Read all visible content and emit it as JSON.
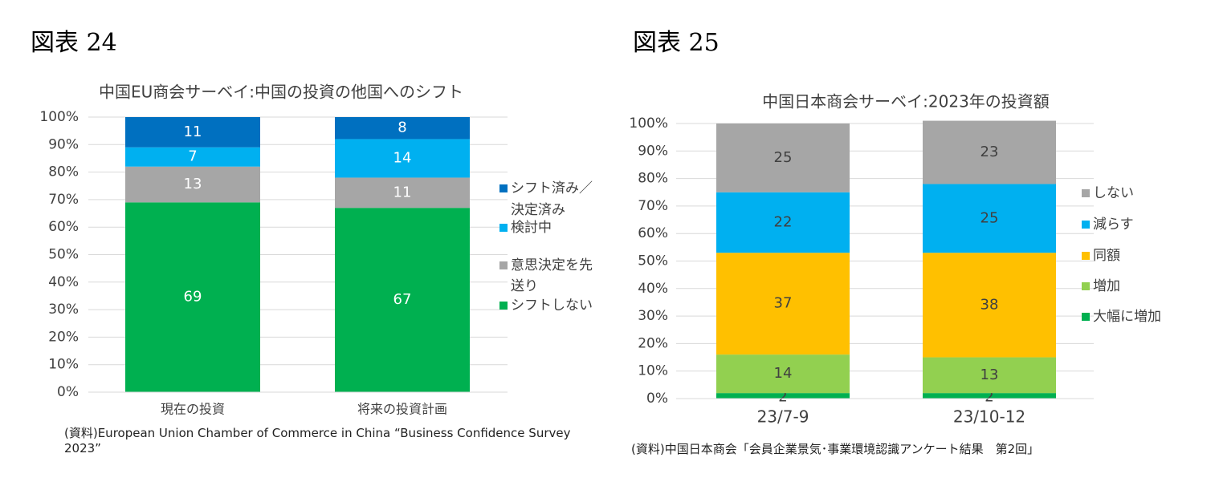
{
  "figures": [
    {
      "label": "図表 24",
      "source": "(資料)European Union Chamber of Commerce in China “Business Confidence Survey 2023”"
    },
    {
      "label": "図表 25",
      "source": "(資料)中国日本商会「会員企業景気･事業環境認識アンケート結果　第2回」"
    }
  ],
  "chart_data": [
    {
      "type": "bar",
      "stacked": true,
      "title": "中国EU商会サーベイ:中国の投資の他国へのシフト",
      "categories": [
        "現在の投資",
        "将来の投資計画"
      ],
      "ylim": [
        0,
        100
      ],
      "yticks": [
        "0%",
        "10%",
        "20%",
        "30%",
        "40%",
        "50%",
        "60%",
        "70%",
        "80%",
        "90%",
        "100%"
      ],
      "grid": true,
      "legend_position": "right",
      "series": [
        {
          "name": "シフトしない",
          "values": [
            69,
            67
          ],
          "color": "#00b050"
        },
        {
          "name": "意思決定を先送り",
          "values": [
            13,
            11
          ],
          "color": "#a6a6a6"
        },
        {
          "name": "検討中",
          "values": [
            7,
            14
          ],
          "color": "#00b0f0"
        },
        {
          "name": "シフト済み／決定済み",
          "values": [
            11,
            8
          ],
          "color": "#0070c0"
        }
      ]
    },
    {
      "type": "bar",
      "stacked": true,
      "title": "中国日本商会サーベイ:2023年の投資額",
      "categories": [
        "23/7-9",
        "23/10-12"
      ],
      "ylim": [
        0,
        100
      ],
      "yticks": [
        "0%",
        "10%",
        "20%",
        "30%",
        "40%",
        "50%",
        "60%",
        "70%",
        "80%",
        "90%",
        "100%"
      ],
      "grid": true,
      "legend_position": "right",
      "series": [
        {
          "name": "大幅に増加",
          "values": [
            2,
            2
          ],
          "color": "#00b050"
        },
        {
          "name": "増加",
          "values": [
            14,
            13
          ],
          "color": "#92d050"
        },
        {
          "name": "同額",
          "values": [
            37,
            38
          ],
          "color": "#ffc000"
        },
        {
          "name": "減らす",
          "values": [
            22,
            25
          ],
          "color": "#00b0f0"
        },
        {
          "name": "しない",
          "values": [
            25,
            23
          ],
          "color": "#a6a6a6"
        }
      ]
    }
  ]
}
